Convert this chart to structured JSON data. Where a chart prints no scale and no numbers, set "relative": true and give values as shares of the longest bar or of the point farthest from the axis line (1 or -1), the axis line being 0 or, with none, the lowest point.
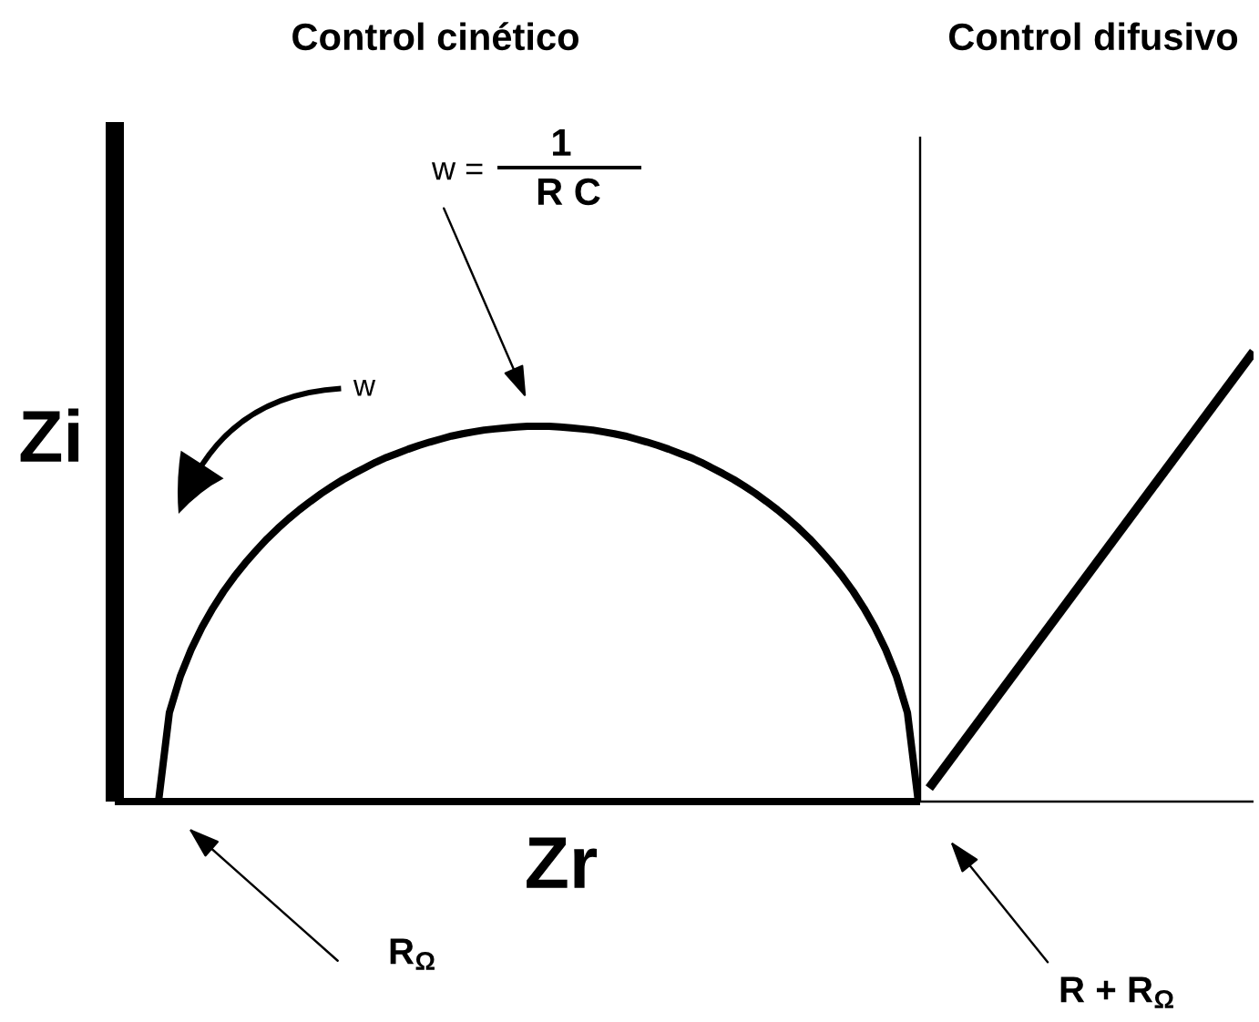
{
  "chart_data": [
    {
      "type": "line",
      "title": "Control cinético",
      "xlabel": "Zr",
      "ylabel": "Zi",
      "relative": true,
      "categories": [
        null,
        null,
        null,
        null,
        null,
        null,
        null,
        null,
        null,
        null,
        null,
        null,
        null,
        null,
        null,
        null,
        null,
        null,
        null,
        null,
        null,
        null,
        null,
        null,
        null,
        null,
        null,
        null,
        null,
        null,
        null,
        null,
        null,
        null,
        null,
        null,
        null,
        null,
        null,
        null,
        null,
        null,
        null,
        null,
        null,
        null,
        null,
        null,
        null,
        null,
        null,
        null,
        null,
        null,
        null,
        null,
        null,
        null,
        null,
        null,
        null,
        null,
        null,
        null,
        null,
        null,
        null,
        null,
        null,
        null,
        null
      ],
      "values": [
        0,
        0.237,
        0.333,
        0.405,
        0.464,
        0.515,
        0.56,
        0.6,
        0.636,
        0.669,
        0.7,
        0.728,
        0.754,
        0.778,
        0.8,
        0.821,
        0.84,
        0.858,
        0.874,
        0.889,
        0.904,
        0.917,
        0.928,
        0.939,
        0.949,
        0.958,
        0.966,
        0.974,
        0.98,
        0.985,
        0.99,
        0.993,
        0.996,
        0.998,
        1.0,
        1,
        1.0,
        0.998,
        0.996,
        0.993,
        0.99,
        0.985,
        0.98,
        0.974,
        0.966,
        0.958,
        0.949,
        0.939,
        0.928,
        0.917,
        0.904,
        0.889,
        0.874,
        0.858,
        0.84,
        0.821,
        0.8,
        0.778,
        0.754,
        0.728,
        0.7,
        0.669,
        0.636,
        0.6,
        0.56,
        0.515,
        0.464,
        0.405,
        0.333,
        0.237,
        0
      ],
      "color": "#000000",
      "annotations": [
        "w =",
        "1",
        "R C",
        "w",
        "R$_{Ω}$",
        "R + R$_{Ω}$"
      ]
    },
    {
      "type": "line",
      "title": "Control difusivo",
      "relative": true,
      "categories": [
        null,
        null
      ],
      "values": [
        0.03,
        1
      ],
      "color": "#000000"
    }
  ]
}
